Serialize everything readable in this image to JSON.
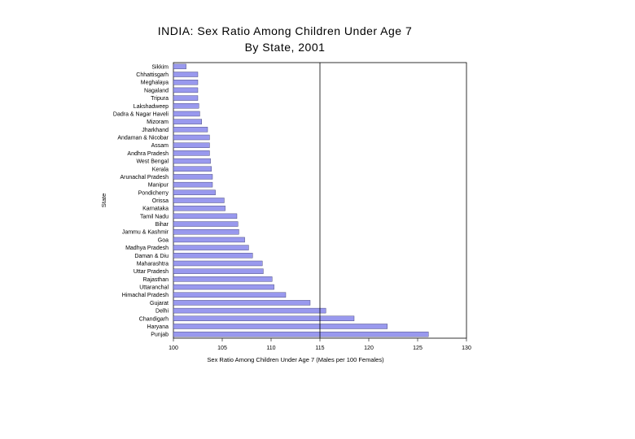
{
  "chart_data": {
    "type": "bar",
    "orientation": "horizontal",
    "title": "INDIA: Sex Ratio Among Children Under Age 7",
    "subtitle": "By State, 2001",
    "xlabel": "Sex Ratio Among Children Under Age 7 (Males per 100 Females)",
    "ylabel": "State",
    "xlim": [
      100,
      130
    ],
    "xticks": [
      100,
      105,
      110,
      115,
      120,
      125,
      130
    ],
    "reference_line": 115,
    "bar_color": "#9999ee",
    "bar_edge_color": "#333366",
    "categories": [
      "Sikkim",
      "Chhattisgarh",
      "Meghalaya",
      "Nagaland",
      "Tripura",
      "Lakshadweep",
      "Dadra & Nagar Haveli",
      "Mizoram",
      "Jharkhand",
      "Andaman & Nicobar",
      "Assam",
      "Andhra Pradesh",
      "West Bengal",
      "Kerala",
      "Arunachal Pradesh",
      "Manipur",
      "Pondicherry",
      "Orissa",
      "Karnataka",
      "Tamil Nadu",
      "Bihar",
      "Jammu & Kashmir",
      "Goa",
      "Madhya Pradesh",
      "Daman & Diu",
      "Maharashtra",
      "Uttar Pradesh",
      "Rajasthan",
      "Uttaranchal",
      "Himachal Pradesh",
      "Gujarat",
      "Delhi",
      "Chandigarh",
      "Haryana",
      "Punjab"
    ],
    "values": [
      101.3,
      102.5,
      102.5,
      102.5,
      102.5,
      102.6,
      102.7,
      102.9,
      103.5,
      103.7,
      103.7,
      103.7,
      103.8,
      103.9,
      104.0,
      104.0,
      104.3,
      105.2,
      105.3,
      106.5,
      106.6,
      106.7,
      107.3,
      107.7,
      108.1,
      109.1,
      109.2,
      110.1,
      110.3,
      111.5,
      114.0,
      115.6,
      118.5,
      121.9,
      126.1
    ]
  }
}
